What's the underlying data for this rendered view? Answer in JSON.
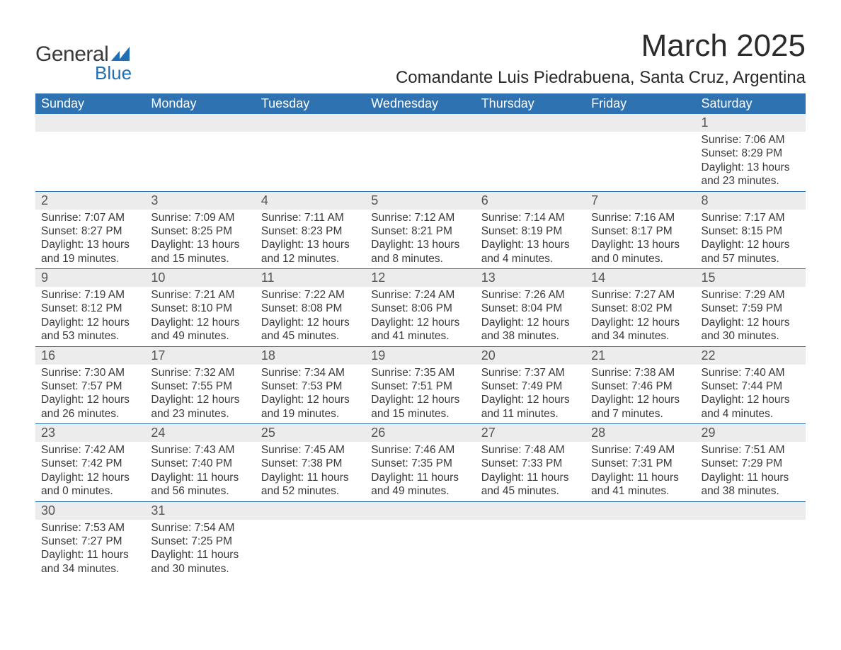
{
  "logo": {
    "word1": "General",
    "word2": "Blue"
  },
  "title": "March 2025",
  "location": "Comandante Luis Piedrabuena, Santa Cruz, Argentina",
  "colors": {
    "header_bg": "#2e72b1",
    "header_text": "#ffffff",
    "daynum_bg": "#ececec",
    "row_border": "#2e72b1",
    "body_text": "#3a3a3a",
    "logo_accent": "#1f6fb2",
    "page_bg": "#ffffff"
  },
  "typography": {
    "title_fontsize": 44,
    "location_fontsize": 24,
    "header_fontsize": 18,
    "daynum_fontsize": 18,
    "detail_fontsize": 15.5,
    "font_family": "Arial"
  },
  "weekdays": [
    "Sunday",
    "Monday",
    "Tuesday",
    "Wednesday",
    "Thursday",
    "Friday",
    "Saturday"
  ],
  "weeks": [
    [
      null,
      null,
      null,
      null,
      null,
      null,
      {
        "n": "1",
        "sunrise": "Sunrise: 7:06 AM",
        "sunset": "Sunset: 8:29 PM",
        "daylight": "Daylight: 13 hours and 23 minutes."
      }
    ],
    [
      {
        "n": "2",
        "sunrise": "Sunrise: 7:07 AM",
        "sunset": "Sunset: 8:27 PM",
        "daylight": "Daylight: 13 hours and 19 minutes."
      },
      {
        "n": "3",
        "sunrise": "Sunrise: 7:09 AM",
        "sunset": "Sunset: 8:25 PM",
        "daylight": "Daylight: 13 hours and 15 minutes."
      },
      {
        "n": "4",
        "sunrise": "Sunrise: 7:11 AM",
        "sunset": "Sunset: 8:23 PM",
        "daylight": "Daylight: 13 hours and 12 minutes."
      },
      {
        "n": "5",
        "sunrise": "Sunrise: 7:12 AM",
        "sunset": "Sunset: 8:21 PM",
        "daylight": "Daylight: 13 hours and 8 minutes."
      },
      {
        "n": "6",
        "sunrise": "Sunrise: 7:14 AM",
        "sunset": "Sunset: 8:19 PM",
        "daylight": "Daylight: 13 hours and 4 minutes."
      },
      {
        "n": "7",
        "sunrise": "Sunrise: 7:16 AM",
        "sunset": "Sunset: 8:17 PM",
        "daylight": "Daylight: 13 hours and 0 minutes."
      },
      {
        "n": "8",
        "sunrise": "Sunrise: 7:17 AM",
        "sunset": "Sunset: 8:15 PM",
        "daylight": "Daylight: 12 hours and 57 minutes."
      }
    ],
    [
      {
        "n": "9",
        "sunrise": "Sunrise: 7:19 AM",
        "sunset": "Sunset: 8:12 PM",
        "daylight": "Daylight: 12 hours and 53 minutes."
      },
      {
        "n": "10",
        "sunrise": "Sunrise: 7:21 AM",
        "sunset": "Sunset: 8:10 PM",
        "daylight": "Daylight: 12 hours and 49 minutes."
      },
      {
        "n": "11",
        "sunrise": "Sunrise: 7:22 AM",
        "sunset": "Sunset: 8:08 PM",
        "daylight": "Daylight: 12 hours and 45 minutes."
      },
      {
        "n": "12",
        "sunrise": "Sunrise: 7:24 AM",
        "sunset": "Sunset: 8:06 PM",
        "daylight": "Daylight: 12 hours and 41 minutes."
      },
      {
        "n": "13",
        "sunrise": "Sunrise: 7:26 AM",
        "sunset": "Sunset: 8:04 PM",
        "daylight": "Daylight: 12 hours and 38 minutes."
      },
      {
        "n": "14",
        "sunrise": "Sunrise: 7:27 AM",
        "sunset": "Sunset: 8:02 PM",
        "daylight": "Daylight: 12 hours and 34 minutes."
      },
      {
        "n": "15",
        "sunrise": "Sunrise: 7:29 AM",
        "sunset": "Sunset: 7:59 PM",
        "daylight": "Daylight: 12 hours and 30 minutes."
      }
    ],
    [
      {
        "n": "16",
        "sunrise": "Sunrise: 7:30 AM",
        "sunset": "Sunset: 7:57 PM",
        "daylight": "Daylight: 12 hours and 26 minutes."
      },
      {
        "n": "17",
        "sunrise": "Sunrise: 7:32 AM",
        "sunset": "Sunset: 7:55 PM",
        "daylight": "Daylight: 12 hours and 23 minutes."
      },
      {
        "n": "18",
        "sunrise": "Sunrise: 7:34 AM",
        "sunset": "Sunset: 7:53 PM",
        "daylight": "Daylight: 12 hours and 19 minutes."
      },
      {
        "n": "19",
        "sunrise": "Sunrise: 7:35 AM",
        "sunset": "Sunset: 7:51 PM",
        "daylight": "Daylight: 12 hours and 15 minutes."
      },
      {
        "n": "20",
        "sunrise": "Sunrise: 7:37 AM",
        "sunset": "Sunset: 7:49 PM",
        "daylight": "Daylight: 12 hours and 11 minutes."
      },
      {
        "n": "21",
        "sunrise": "Sunrise: 7:38 AM",
        "sunset": "Sunset: 7:46 PM",
        "daylight": "Daylight: 12 hours and 7 minutes."
      },
      {
        "n": "22",
        "sunrise": "Sunrise: 7:40 AM",
        "sunset": "Sunset: 7:44 PM",
        "daylight": "Daylight: 12 hours and 4 minutes."
      }
    ],
    [
      {
        "n": "23",
        "sunrise": "Sunrise: 7:42 AM",
        "sunset": "Sunset: 7:42 PM",
        "daylight": "Daylight: 12 hours and 0 minutes."
      },
      {
        "n": "24",
        "sunrise": "Sunrise: 7:43 AM",
        "sunset": "Sunset: 7:40 PM",
        "daylight": "Daylight: 11 hours and 56 minutes."
      },
      {
        "n": "25",
        "sunrise": "Sunrise: 7:45 AM",
        "sunset": "Sunset: 7:38 PM",
        "daylight": "Daylight: 11 hours and 52 minutes."
      },
      {
        "n": "26",
        "sunrise": "Sunrise: 7:46 AM",
        "sunset": "Sunset: 7:35 PM",
        "daylight": "Daylight: 11 hours and 49 minutes."
      },
      {
        "n": "27",
        "sunrise": "Sunrise: 7:48 AM",
        "sunset": "Sunset: 7:33 PM",
        "daylight": "Daylight: 11 hours and 45 minutes."
      },
      {
        "n": "28",
        "sunrise": "Sunrise: 7:49 AM",
        "sunset": "Sunset: 7:31 PM",
        "daylight": "Daylight: 11 hours and 41 minutes."
      },
      {
        "n": "29",
        "sunrise": "Sunrise: 7:51 AM",
        "sunset": "Sunset: 7:29 PM",
        "daylight": "Daylight: 11 hours and 38 minutes."
      }
    ],
    [
      {
        "n": "30",
        "sunrise": "Sunrise: 7:53 AM",
        "sunset": "Sunset: 7:27 PM",
        "daylight": "Daylight: 11 hours and 34 minutes."
      },
      {
        "n": "31",
        "sunrise": "Sunrise: 7:54 AM",
        "sunset": "Sunset: 7:25 PM",
        "daylight": "Daylight: 11 hours and 30 minutes."
      },
      null,
      null,
      null,
      null,
      null
    ]
  ]
}
